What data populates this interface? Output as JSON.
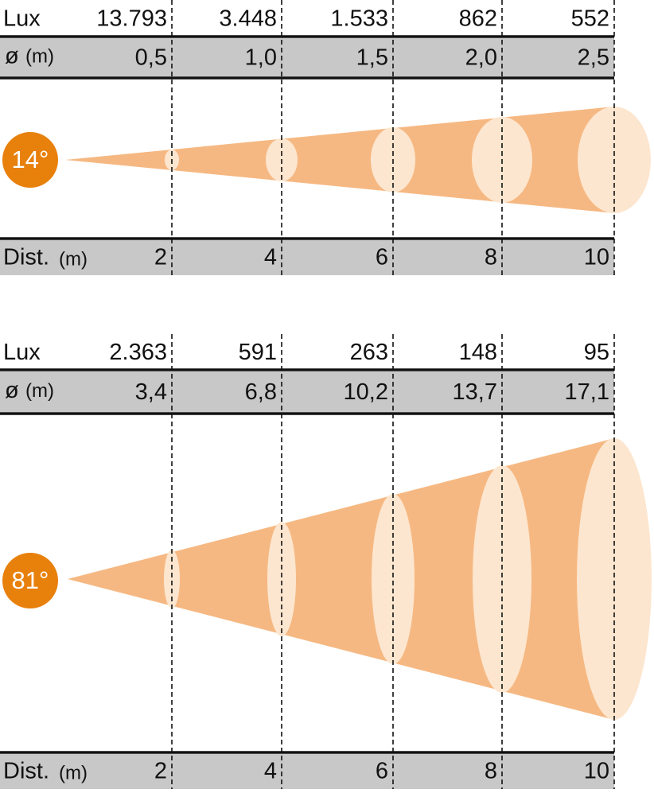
{
  "panels": [
    {
      "angle": "14°",
      "lux_label": "Lux",
      "lux": [
        "13.793",
        "3.448",
        "1.533",
        "862",
        "552"
      ],
      "diameter_label": "ø",
      "diameter_unit": "(m)",
      "diameter": [
        "0,5",
        "1,0",
        "1,5",
        "2,0",
        "2,5"
      ],
      "distance_label": "Dist.",
      "distance_unit": "(m)",
      "distance": [
        "2",
        "4",
        "6",
        "8",
        "10"
      ]
    },
    {
      "angle": "81°",
      "lux_label": "Lux",
      "lux": [
        "2.363",
        "591",
        "263",
        "148",
        "95"
      ],
      "diameter_label": "ø",
      "diameter_unit": "(m)",
      "diameter": [
        "3,4",
        "6,8",
        "10,2",
        "13,7",
        "17,1"
      ],
      "distance_label": "Dist.",
      "distance_unit": "(m)",
      "distance": [
        "2",
        "4",
        "6",
        "8",
        "10"
      ]
    }
  ]
}
